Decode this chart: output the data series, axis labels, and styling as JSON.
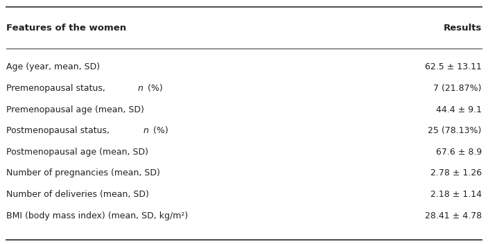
{
  "col1_header": "Features of the women",
  "col2_header": "Results",
  "rows": [
    {
      "col1": "Age (year, mean, SD)",
      "col2": "62.5 ± 13.11",
      "italic_n": false
    },
    {
      "col1_pre": "Premenopausal status, ",
      "col1_italic": "n",
      "col1_post": " (%)",
      "col2": "7 (21.87%)",
      "italic_n": true
    },
    {
      "col1": "Premenopausal age (mean, SD)",
      "col2": "44.4 ± 9.1",
      "italic_n": false
    },
    {
      "col1_pre": "Postmenopausal status, ",
      "col1_italic": "n",
      "col1_post": " (%)",
      "col2": "25 (78.13%)",
      "italic_n": true
    },
    {
      "col1": "Postmenopausal age (mean, SD)",
      "col2": "67.6 ± 8.9",
      "italic_n": false
    },
    {
      "col1": "Number of pregnancies (mean, SD)",
      "col2": "2.78 ± 1.26",
      "italic_n": false
    },
    {
      "col1": "Number of deliveries (mean, SD)",
      "col2": "2.18 ± 1.14",
      "italic_n": false
    },
    {
      "col1": "BMI (body mass index) (mean, SD, kg/m²)",
      "col2": "28.41 ± 4.78",
      "italic_n": false
    }
  ],
  "background_color": "#ffffff",
  "text_color": "#231f20",
  "header_fontsize": 9.5,
  "body_fontsize": 9.0,
  "font_family": "Arial"
}
